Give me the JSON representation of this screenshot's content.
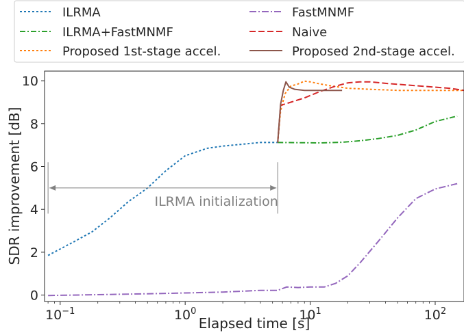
{
  "chart_data": {
    "type": "line",
    "xlabel": "Elapsed time [s]",
    "ylabel": "SDR improvement [dB]",
    "xscale": "log",
    "xlim": [
      0.075,
      170
    ],
    "ylim": [
      -0.3,
      10.45
    ],
    "x_ticks": [
      {
        "value": 0.1,
        "base": "10",
        "exp": "−1"
      },
      {
        "value": 1,
        "base": "10",
        "exp": "0"
      },
      {
        "value": 10,
        "base": "10",
        "exp": "1"
      },
      {
        "value": 100,
        "base": "10",
        "exp": "2"
      }
    ],
    "y_ticks": [
      {
        "value": 0,
        "label": "0"
      },
      {
        "value": 2,
        "label": "2"
      },
      {
        "value": 4,
        "label": "4"
      },
      {
        "value": 6,
        "label": "6"
      },
      {
        "value": 8,
        "label": "8"
      },
      {
        "value": 10,
        "label": "10"
      }
    ],
    "grid": false,
    "legend_position": "top (above plot, two columns)",
    "annotation": {
      "text": "ILRMA initialization",
      "x_start": 0.08,
      "x_end": 5.5,
      "y": 5.0,
      "bracket_ymin": 3.8,
      "bracket_ymax": 6.2,
      "color": "#808080"
    },
    "series": [
      {
        "name": "ILRMA",
        "color": "#1f77b4",
        "dash": "3,3",
        "points": [
          [
            0.08,
            1.85
          ],
          [
            0.1,
            2.15
          ],
          [
            0.13,
            2.5
          ],
          [
            0.18,
            2.95
          ],
          [
            0.25,
            3.6
          ],
          [
            0.35,
            4.35
          ],
          [
            0.5,
            5.0
          ],
          [
            0.7,
            5.8
          ],
          [
            1.0,
            6.5
          ],
          [
            1.5,
            6.85
          ],
          [
            2.0,
            6.95
          ],
          [
            3.0,
            7.05
          ],
          [
            4.0,
            7.12
          ],
          [
            5.5,
            7.12
          ]
        ]
      },
      {
        "name": "ILRMA+FastMNMF",
        "color": "#2ca02c",
        "dash": "8,3,2,3",
        "points": [
          [
            5.5,
            7.12
          ],
          [
            8,
            7.11
          ],
          [
            12,
            7.1
          ],
          [
            18,
            7.13
          ],
          [
            25,
            7.2
          ],
          [
            35,
            7.3
          ],
          [
            50,
            7.45
          ],
          [
            70,
            7.7
          ],
          [
            100,
            8.1
          ],
          [
            150,
            8.35
          ]
        ]
      },
      {
        "name": "Proposed 1st-stage accel.",
        "color": "#ff7f0e",
        "dash": "3,3",
        "points": [
          [
            5.5,
            7.12
          ],
          [
            5.8,
            8.6
          ],
          [
            6.3,
            9.4
          ],
          [
            7,
            9.75
          ],
          [
            8,
            9.85
          ],
          [
            9,
            9.98
          ],
          [
            10,
            9.95
          ],
          [
            12,
            9.85
          ],
          [
            15,
            9.75
          ],
          [
            20,
            9.65
          ],
          [
            30,
            9.6
          ],
          [
            50,
            9.55
          ],
          [
            100,
            9.55
          ],
          [
            170,
            9.55
          ]
        ]
      },
      {
        "name": "FastMNMF",
        "color": "#9467bd",
        "dash": "10,3,2,3",
        "points": [
          [
            0.08,
            -0.02
          ],
          [
            0.2,
            0.02
          ],
          [
            0.5,
            0.06
          ],
          [
            1,
            0.1
          ],
          [
            2,
            0.14
          ],
          [
            4,
            0.22
          ],
          [
            5.5,
            0.22
          ],
          [
            6.5,
            0.38
          ],
          [
            8,
            0.35
          ],
          [
            10,
            0.38
          ],
          [
            13,
            0.38
          ],
          [
            16,
            0.55
          ],
          [
            20,
            0.9
          ],
          [
            25,
            1.5
          ],
          [
            35,
            2.5
          ],
          [
            50,
            3.6
          ],
          [
            70,
            4.5
          ],
          [
            100,
            4.95
          ],
          [
            150,
            5.2
          ]
        ]
      },
      {
        "name": "Naive",
        "color": "#d62728",
        "dash": "9,4",
        "points": [
          [
            5.5,
            7.12
          ],
          [
            5.8,
            8.85
          ],
          [
            7,
            9.0
          ],
          [
            9,
            9.2
          ],
          [
            12,
            9.5
          ],
          [
            16,
            9.75
          ],
          [
            20,
            9.9
          ],
          [
            25,
            9.95
          ],
          [
            30,
            9.95
          ],
          [
            40,
            9.88
          ],
          [
            60,
            9.8
          ],
          [
            90,
            9.72
          ],
          [
            130,
            9.65
          ],
          [
            170,
            9.55
          ]
        ]
      },
      {
        "name": "Proposed 2nd-stage accel.",
        "color": "#8c564b",
        "dash": "",
        "points": [
          [
            5.5,
            7.12
          ],
          [
            5.8,
            8.9
          ],
          [
            6.1,
            9.55
          ],
          [
            6.4,
            9.95
          ],
          [
            6.8,
            9.7
          ],
          [
            7.5,
            9.6
          ],
          [
            9,
            9.55
          ],
          [
            12,
            9.55
          ],
          [
            18,
            9.55
          ]
        ]
      }
    ]
  }
}
